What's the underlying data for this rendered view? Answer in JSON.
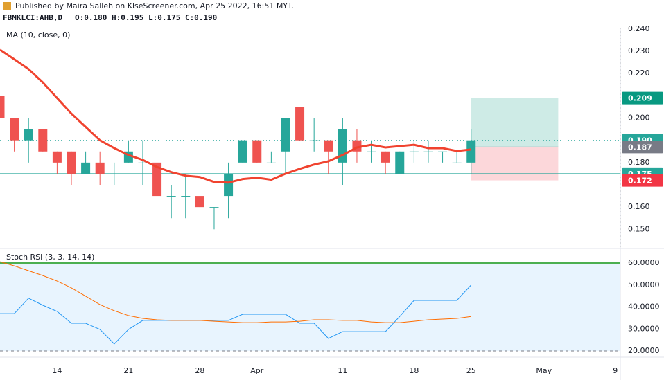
{
  "header": {
    "publisher": "Published by Maira Salleh on KlseScreener.com, Apr 25 2022, 16:51 MYT.",
    "symbol": "FBMKLCI:AHB,D",
    "ohlc": "O:0.180 H:0.195 L:0.175 C:0.190"
  },
  "chart_data": [
    {
      "type": "candlestick",
      "x": [
        0,
        1,
        2,
        3,
        4,
        5,
        6,
        7,
        8,
        9,
        10,
        11,
        12,
        13,
        14,
        15,
        16,
        17,
        18,
        19,
        20,
        21,
        22,
        23,
        24,
        25,
        26,
        27,
        28,
        29,
        30,
        31,
        32,
        33
      ],
      "open": [
        0.21,
        0.2,
        0.19,
        0.195,
        0.185,
        0.185,
        0.175,
        0.18,
        0.175,
        0.18,
        0.18,
        0.18,
        0.165,
        0.165,
        0.165,
        0.16,
        0.165,
        0.18,
        0.19,
        0.18,
        0.185,
        0.205,
        0.19,
        0.19,
        0.18,
        0.19,
        0.185,
        0.185,
        0.175,
        0.185,
        0.185,
        0.185,
        0.18,
        0.18
      ],
      "high": [
        0.21,
        0.2,
        0.2,
        0.195,
        0.185,
        0.185,
        0.185,
        0.185,
        0.18,
        0.19,
        0.19,
        0.18,
        0.17,
        0.175,
        0.165,
        0.16,
        0.18,
        0.19,
        0.19,
        0.185,
        0.2,
        0.205,
        0.2,
        0.19,
        0.2,
        0.195,
        0.19,
        0.185,
        0.185,
        0.19,
        0.19,
        0.185,
        0.185,
        0.195
      ],
      "low": [
        0.2,
        0.185,
        0.18,
        0.185,
        0.175,
        0.17,
        0.175,
        0.17,
        0.17,
        0.18,
        0.17,
        0.165,
        0.155,
        0.155,
        0.16,
        0.15,
        0.155,
        0.18,
        0.18,
        0.18,
        0.175,
        0.19,
        0.185,
        0.175,
        0.17,
        0.18,
        0.18,
        0.175,
        0.175,
        0.18,
        0.18,
        0.18,
        0.18,
        0.175
      ],
      "close": [
        0.2,
        0.19,
        0.195,
        0.185,
        0.18,
        0.175,
        0.18,
        0.175,
        0.175,
        0.185,
        0.18,
        0.165,
        0.165,
        0.165,
        0.16,
        0.16,
        0.175,
        0.19,
        0.18,
        0.18,
        0.2,
        0.19,
        0.19,
        0.185,
        0.195,
        0.185,
        0.185,
        0.18,
        0.185,
        0.185,
        0.185,
        0.185,
        0.18,
        0.19
      ],
      "up_color": "#26a69a",
      "down_color": "#ef5350",
      "series": [
        {
          "name": "MA (10, close, 0)",
          "color": "#f0432f",
          "values": [
            0.2307,
            0.2264,
            0.222,
            0.216,
            0.209,
            0.202,
            0.196,
            0.19,
            0.1865,
            0.1834,
            0.1812,
            0.178,
            0.1757,
            0.1741,
            0.1735,
            0.1713,
            0.171,
            0.1726,
            0.1732,
            0.1723,
            0.175,
            0.1772,
            0.1791,
            0.1806,
            0.1834,
            0.1868,
            0.188,
            0.1868,
            0.1874,
            0.188,
            0.1865,
            0.1865,
            0.1852,
            0.1859
          ]
        }
      ],
      "xlim": [
        0,
        43.45
      ],
      "ylim": [
        0.1417,
        0.2406
      ],
      "yticks": [
        {
          "value": 0.24,
          "label": "0.240"
        },
        {
          "value": 0.23,
          "label": "0.230"
        },
        {
          "value": 0.22,
          "label": "0.220"
        },
        {
          "value": 0.2,
          "label": "0.200"
        },
        {
          "value": 0.18,
          "label": "0.180"
        },
        {
          "value": 0.16,
          "label": "0.160"
        },
        {
          "value": 0.15,
          "label": "0.150"
        }
      ],
      "position": {
        "x": [
          33,
          39.1
        ],
        "target": 0.209,
        "entry": 0.187,
        "stop": 0.172
      },
      "price_labels": [
        {
          "value": 0.209,
          "label": "0.209",
          "color": "#089981"
        },
        {
          "value": 0.19,
          "label": "0.190",
          "color": "#26a69a"
        },
        {
          "value": 0.187,
          "label": "0.187",
          "color": "#787b86"
        },
        {
          "value": 0.175,
          "label": "0.175",
          "color": "#26a69a"
        },
        {
          "value": 0.172,
          "label": "0.172",
          "color": "#f23645"
        }
      ]
    },
    {
      "type": "line",
      "title": "Stoch RSI (3, 3, 14, 14)",
      "x": [
        0,
        1,
        2,
        3,
        4,
        5,
        6,
        7,
        8,
        9,
        10,
        11,
        12,
        13,
        14,
        15,
        16,
        17,
        18,
        19,
        20,
        21,
        22,
        23,
        24,
        25,
        26,
        27,
        28,
        29,
        30,
        31,
        32,
        33
      ],
      "series": [
        {
          "color": "#2196f3",
          "values": [
            37,
            37,
            44,
            40.8,
            38,
            32.6,
            32.6,
            29.8,
            23.2,
            29.8,
            33.9,
            33.9,
            33.9,
            33.9,
            33.9,
            33.9,
            33.9,
            36.7,
            36.7,
            36.7,
            36.7,
            32.6,
            32.6,
            25.7,
            28.8,
            28.8,
            28.8,
            28.8,
            35.7,
            43,
            43,
            43,
            43,
            50
          ]
        },
        {
          "color": "#ff6d00",
          "values": [
            60.6,
            58.7,
            56.5,
            54.3,
            51.8,
            48.7,
            44.9,
            41.1,
            38.3,
            36.1,
            34.8,
            34.2,
            33.9,
            33.9,
            33.9,
            33.5,
            33.2,
            32.9,
            32.9,
            33.2,
            33.2,
            33.5,
            34.2,
            34.2,
            33.9,
            33.9,
            33.2,
            32.9,
            32.9,
            33.5,
            34.2,
            34.5,
            34.8,
            35.7
          ]
        }
      ],
      "bands": [
        {
          "value": 60,
          "color": "#4caf50"
        },
        {
          "value": 20,
          "color": "#787b86"
        }
      ],
      "xlim": [
        0,
        43.45
      ],
      "ylim": [
        17.5,
        66.3
      ],
      "yticks": [
        {
          "value": 60,
          "label": "60.0000"
        },
        {
          "value": 50,
          "label": "50.0000"
        },
        {
          "value": 40,
          "label": "40.0000"
        },
        {
          "value": 30,
          "label": "30.0000"
        },
        {
          "value": 20,
          "label": "20.0000"
        }
      ],
      "xticks": [
        {
          "value": 4,
          "label": "14"
        },
        {
          "value": 9,
          "label": "21"
        },
        {
          "value": 14,
          "label": "28"
        },
        {
          "value": 18,
          "label": "Apr"
        },
        {
          "value": 24,
          "label": "11"
        },
        {
          "value": 29,
          "label": "18"
        },
        {
          "value": 33,
          "label": "25"
        },
        {
          "value": 38.1,
          "label": "May"
        },
        {
          "value": 43.1,
          "label": "9"
        }
      ]
    }
  ]
}
